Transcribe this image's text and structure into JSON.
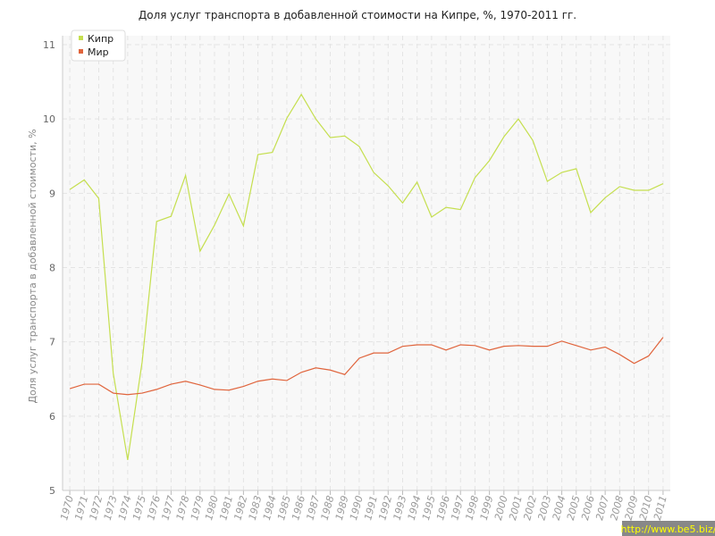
{
  "chart_data": {
    "type": "line",
    "title": "Доля услуг транспорта в добавленной стоимости на Кипре, %, 1970-2011 гг.",
    "y_label": "Доля услуг транспорта в добавленной стоимости, %",
    "watermark": "http://www.be5.biz/",
    "x": [
      1970,
      1971,
      1972,
      1973,
      1974,
      1975,
      1976,
      1977,
      1978,
      1979,
      1980,
      1981,
      1982,
      1983,
      1984,
      1985,
      1986,
      1987,
      1988,
      1989,
      1990,
      1991,
      1992,
      1993,
      1994,
      1995,
      1996,
      1997,
      1998,
      1999,
      2000,
      2001,
      2002,
      2003,
      2004,
      2005,
      2006,
      2007,
      2008,
      2009,
      2010,
      2011
    ],
    "series": [
      {
        "name": "Кипр",
        "color": "#c5df4f",
        "values": [
          9.05,
          9.18,
          8.93,
          6.58,
          5.41,
          6.73,
          8.62,
          8.69,
          9.24,
          8.22,
          8.57,
          8.99,
          8.56,
          9.52,
          9.55,
          10.01,
          10.33,
          10.0,
          9.75,
          9.77,
          9.63,
          9.28,
          9.1,
          8.87,
          9.15,
          8.68,
          8.81,
          8.78,
          9.21,
          9.44,
          9.76,
          10.0,
          9.71,
          9.16,
          9.28,
          9.33,
          8.74,
          8.94,
          9.09,
          9.04,
          9.04,
          9.13
        ]
      },
      {
        "name": "Мир",
        "color": "#e0643c",
        "values": [
          6.37,
          6.43,
          6.43,
          6.31,
          6.29,
          6.31,
          6.36,
          6.43,
          6.47,
          6.42,
          6.36,
          6.35,
          6.4,
          6.47,
          6.5,
          6.48,
          6.59,
          6.65,
          6.62,
          6.56,
          6.78,
          6.85,
          6.85,
          6.94,
          6.96,
          6.96,
          6.89,
          6.96,
          6.95,
          6.89,
          6.94,
          6.95,
          6.94,
          6.94,
          7.01,
          6.95,
          6.89,
          6.93,
          6.83,
          6.71,
          6.81,
          7.06
        ]
      }
    ],
    "xlim": [
      1969.5,
      2011.5
    ],
    "xticks": [
      1970,
      1971,
      1972,
      1973,
      1974,
      1975,
      1976,
      1977,
      1978,
      1979,
      1980,
      1981,
      1982,
      1983,
      1984,
      1985,
      1986,
      1987,
      1988,
      1989,
      1990,
      1991,
      1992,
      1993,
      1994,
      1995,
      1996,
      1997,
      1998,
      1999,
      2000,
      2001,
      2002,
      2003,
      2004,
      2005,
      2006,
      2007,
      2008,
      2009,
      2010,
      2011
    ],
    "ylim": [
      5,
      11
    ],
    "yticks": [
      5,
      6,
      7,
      8,
      9,
      10,
      11
    ],
    "grid": true,
    "legend": "top-left"
  }
}
